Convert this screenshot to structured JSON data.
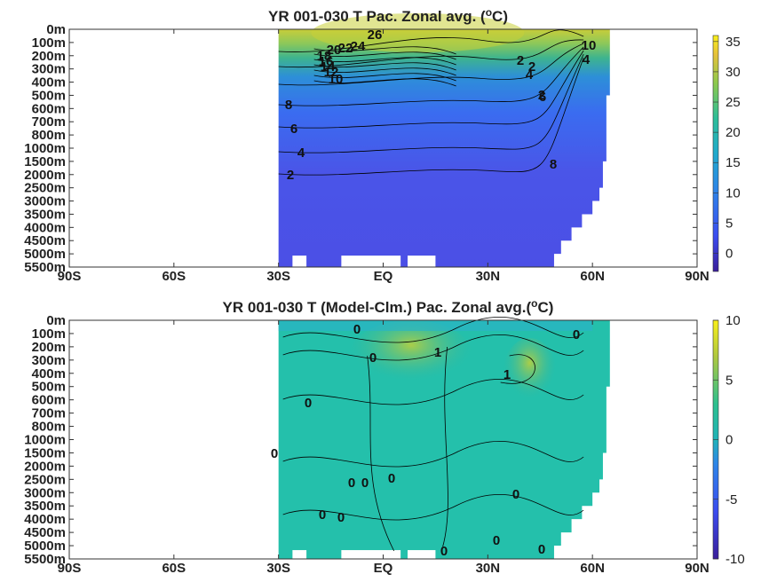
{
  "chart_data": [
    {
      "type": "heatmap",
      "title": "YR 001-030 T Pac. Zonal avg. (",
      "title_sup": "o",
      "title_end": "C)",
      "xticks": [
        "90S",
        "60S",
        "30S",
        "EQ",
        "30N",
        "60N",
        "90N"
      ],
      "xtick_values": [
        -90,
        -60,
        -30,
        0,
        30,
        60,
        90
      ],
      "yticks": [
        "0m",
        "100m",
        "200m",
        "300m",
        "400m",
        "500m",
        "600m",
        "700m",
        "800m",
        "1000m",
        "1500m",
        "2000m",
        "2500m",
        "3000m",
        "3500m",
        "4000m",
        "4500m",
        "5000m",
        "5500m"
      ],
      "colorbar": {
        "ticks": [
          "35",
          "30",
          "25",
          "20",
          "15",
          "10",
          "5",
          "0"
        ],
        "values": [
          35,
          30,
          25,
          20,
          15,
          10,
          5,
          0
        ],
        "range": [
          -3,
          36
        ]
      },
      "data_lon_range": [
        -30,
        60
      ],
      "contour_labels": [
        "26",
        "24",
        "22",
        "20",
        "18",
        "16",
        "14",
        "12",
        "10",
        "8",
        "6",
        "4",
        "2",
        "2",
        "4",
        "6",
        "8",
        "10",
        "4",
        "2",
        "2"
      ],
      "colors": {
        "warm": "#c8cd3a",
        "mid": "#3aa8a0",
        "cold": "#4a55e8"
      }
    },
    {
      "type": "heatmap",
      "title": "YR 001-030 T (Model-Clm.) Pac. Zonal avg.(",
      "title_sup": "o",
      "title_end": "C)",
      "xticks": [
        "90S",
        "60S",
        "30S",
        "EQ",
        "30N",
        "60N",
        "90N"
      ],
      "xtick_values": [
        -90,
        -60,
        -30,
        0,
        30,
        60,
        90
      ],
      "yticks": [
        "0m",
        "100m",
        "200m",
        "300m",
        "400m",
        "500m",
        "600m",
        "700m",
        "800m",
        "1000m",
        "1500m",
        "2000m",
        "2500m",
        "3000m",
        "3500m",
        "4000m",
        "4500m",
        "5000m",
        "5500m"
      ],
      "colorbar": {
        "ticks": [
          "10",
          "5",
          "0",
          "-5",
          "-10"
        ],
        "values": [
          10,
          5,
          0,
          -5,
          -10
        ],
        "range": [
          -10,
          10
        ]
      },
      "data_lon_range": [
        -30,
        60
      ],
      "contour_labels": [
        "0",
        "0",
        "1",
        "0",
        "1",
        "0",
        "0",
        "0",
        "0",
        "0",
        "0",
        "0",
        "0",
        "0",
        "0",
        "0"
      ],
      "colors": {
        "base": "#22c3a8",
        "warm": "#3fcf8c",
        "cool": "#1fb6b8"
      }
    }
  ]
}
